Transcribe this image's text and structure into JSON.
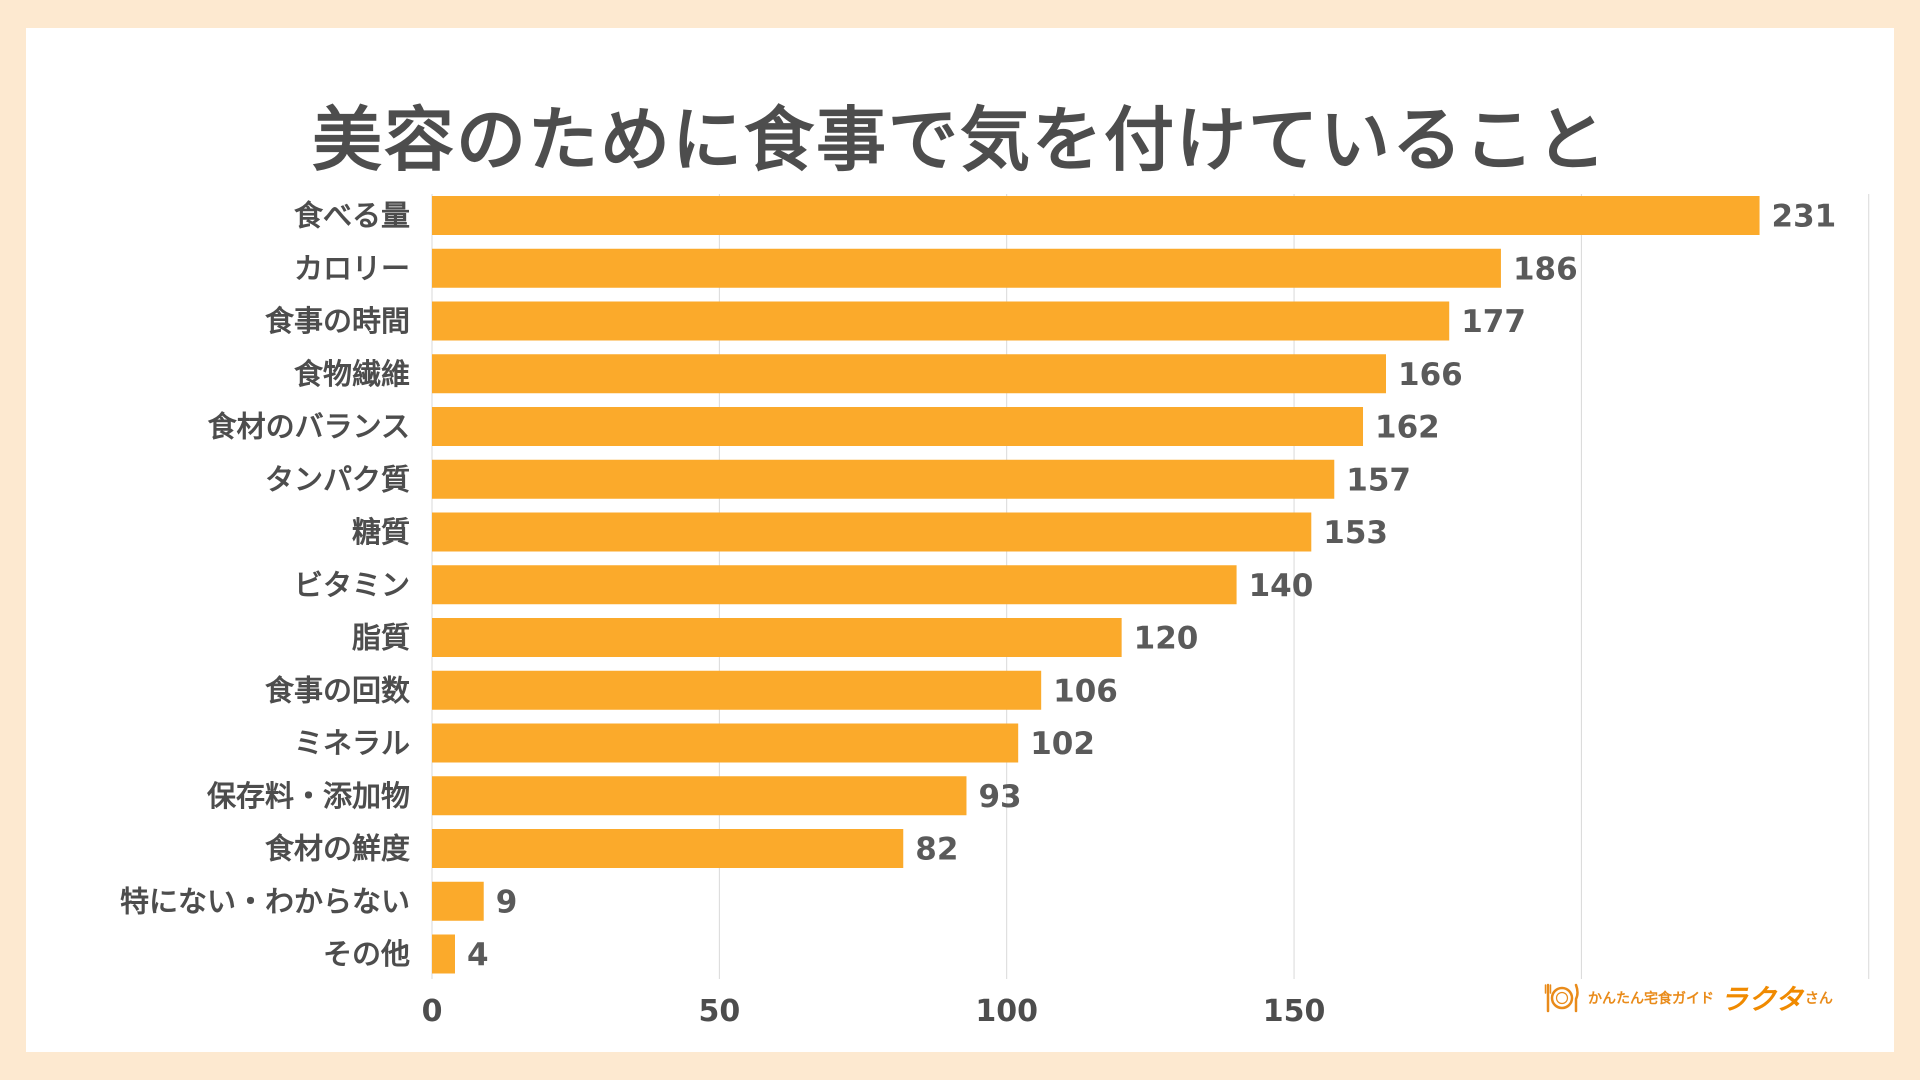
{
  "chart_data": {
    "type": "bar",
    "orientation": "horizontal",
    "title": "美容のために食事で気を付けていること",
    "categories": [
      "食べる量",
      "カロリー",
      "食事の時間",
      "食物繊維",
      "食材のバランス",
      "タンパク質",
      "糖質",
      "ビタミン",
      "脂質",
      "食事の回数",
      "ミネラル",
      "保存料・添加物",
      "食材の鮮度",
      "特にない・わからない",
      "その他"
    ],
    "values": [
      231,
      186,
      177,
      166,
      162,
      157,
      153,
      140,
      120,
      106,
      102,
      93,
      82,
      9,
      4
    ],
    "xlim": [
      0,
      250
    ],
    "xticks": [
      0,
      50,
      100,
      150,
      200,
      250
    ],
    "xtick_labels_visible": [
      "0",
      "50",
      "100",
      "150"
    ],
    "grid": true,
    "bar_color": "#fbaa2b"
  },
  "logo": {
    "small_text": "かんたん宅食ガイド",
    "brand": "ラクタ",
    "suffix": "さん",
    "icon": "plate-fork-knife-icon"
  }
}
